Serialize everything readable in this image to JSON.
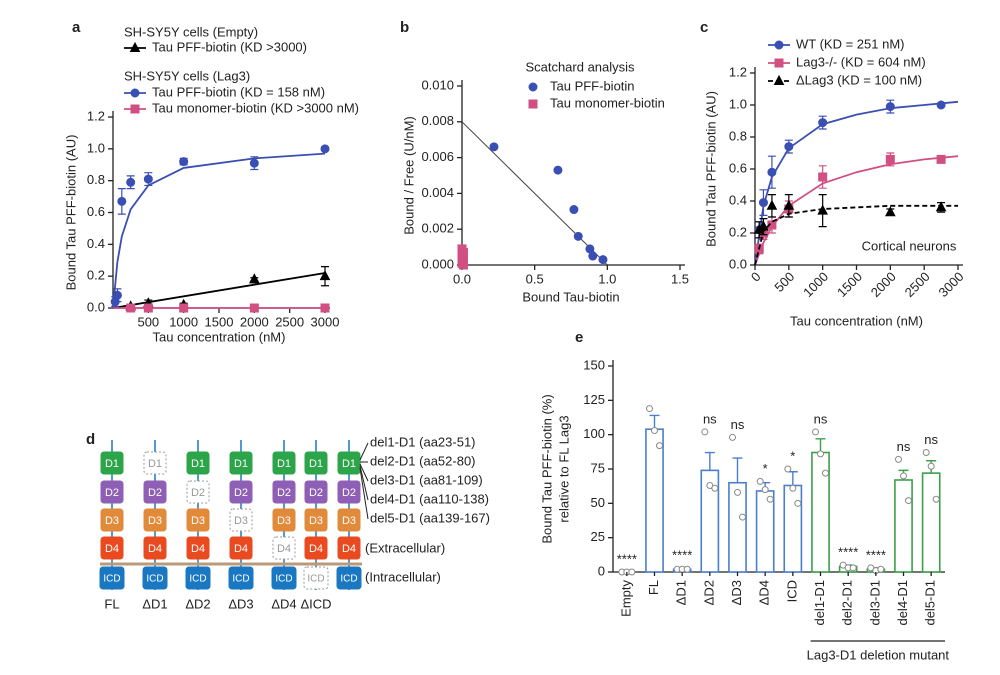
{
  "panel_labels": [
    "a",
    "b",
    "c",
    "d",
    "e"
  ],
  "chart_data": [
    {
      "type": "line",
      "legend_groups": [
        "SH-SY5Y cells (Empty)",
        "SH-SY5Y cells (Lag3)"
      ],
      "xlabel": "Tau concentration (nM)",
      "ylabel": "Bound Tau PFF-biotin (AU)",
      "xlim": [
        0,
        3000
      ],
      "xticks": [
        500,
        1000,
        1500,
        2000,
        2500,
        3000
      ],
      "ylim": [
        0,
        1.2
      ],
      "yticks": [
        {
          "value": 0,
          "label": "0.0"
        },
        0.2,
        0.4,
        0.6,
        0.8,
        {
          "value": 1,
          "label": "1.0"
        },
        1.2
      ],
      "series": [
        {
          "name": "Tau PFF-biotin (KD >3000)",
          "color": "#000000",
          "marker": "triangle",
          "x": [
            250,
            500,
            1000,
            2000,
            3000
          ],
          "values": [
            0.01,
            0.03,
            0.02,
            0.18,
            0.2
          ],
          "errors": [
            0.01,
            0.02,
            0.01,
            0.01,
            0.06
          ],
          "fit": {
            "x": [
              0,
              3000
            ],
            "values": [
              0,
              0.22
            ]
          }
        },
        {
          "name": "Tau PFF-biotin (KD = 158 nM)",
          "color": "#3a4fb3",
          "marker": "circle",
          "x": [
            31.25,
            62.5,
            125,
            250,
            500,
            1000,
            2000,
            3000
          ],
          "values": [
            0.04,
            0.08,
            0.67,
            0.79,
            0.81,
            0.92,
            0.91,
            1.0
          ],
          "errors": [
            0.03,
            0.04,
            0.08,
            0.04,
            0.04,
            0.02,
            0.04,
            0.01
          ],
          "fit": {
            "x": [
              0,
              62.5,
              125,
              250,
              500,
              1000,
              2000,
              3000
            ],
            "values": [
              0,
              0.29,
              0.45,
              0.62,
              0.77,
              0.88,
              0.94,
              0.97
            ]
          }
        },
        {
          "name": "Tau monomer-biotin (KD >3000 nM)",
          "color": "#d14f83",
          "marker": "square",
          "x": [
            250,
            500,
            1000,
            2000,
            3000
          ],
          "values": [
            0,
            0,
            0,
            0,
            0
          ],
          "fit": {
            "x": [
              0,
              3000
            ],
            "values": [
              0,
              0
            ]
          }
        }
      ]
    },
    {
      "type": "scatter",
      "title": "Scatchard analysis",
      "xlabel": "Bound Tau-biotin",
      "ylabel": "Bound / Free (U/nM)",
      "xlim": [
        0,
        1.5
      ],
      "xticks": [
        {
          "value": 0,
          "label": "0.0"
        },
        0.5,
        {
          "value": 1,
          "label": "1.0"
        },
        1.5
      ],
      "ylim": [
        0,
        0.01
      ],
      "yticks": [
        {
          "value": 0,
          "label": "0.000"
        },
        0.002,
        0.004,
        0.006,
        0.008,
        {
          "value": 0.01,
          "label": "0.010"
        }
      ],
      "series": [
        {
          "name": "Tau  PFF-biotin",
          "color": "#3a4fb3",
          "marker": "circle",
          "x": [
            0.22,
            0.66,
            0.77,
            0.8,
            0.88,
            0.9,
            0.97
          ],
          "values": [
            0.0066,
            0.0053,
            0.0031,
            0.0016,
            0.0009,
            0.0005,
            0.0003
          ]
        },
        {
          "name": "Tau monomer-biotin",
          "color": "#d14f83",
          "marker": "square",
          "x": [
            0,
            0.01,
            0,
            0.01,
            0,
            0.01
          ],
          "values": [
            0.0009,
            0.0007,
            0.0005,
            0.0003,
            0.0001,
            0
          ]
        }
      ],
      "fit_line": {
        "x": [
          0,
          1.0
        ],
        "values": [
          0.008,
          0
        ]
      }
    },
    {
      "type": "line",
      "xlabel": "Tau concentration (nM)",
      "ylabel": "Bound Tau PFF-biotin (AU)",
      "annotation": "Cortical neurons",
      "xlim": [
        0,
        3000
      ],
      "xticks": [
        0,
        500,
        1000,
        1500,
        2000,
        2500,
        3000
      ],
      "ylim": [
        0,
        1.2
      ],
      "yticks": [
        {
          "value": 0,
          "label": "0.0"
        },
        0.2,
        0.4,
        0.6,
        0.8,
        {
          "value": 1,
          "label": "1.0"
        },
        1.2
      ],
      "series": [
        {
          "name": "WT (KD = 251 nM)",
          "color": "#3a4fb3",
          "marker": "circle",
          "x": [
            62.5,
            125,
            250,
            500,
            1000,
            2000,
            2750
          ],
          "values": [
            0.22,
            0.39,
            0.58,
            0.74,
            0.89,
            0.99,
            1.0
          ],
          "errors": [
            0.05,
            0.08,
            0.1,
            0.04,
            0.04,
            0.04,
            0.01
          ],
          "fit": {
            "x": [
              0,
              125,
              250,
              500,
              1000,
              1500,
              2000,
              2500,
              3000
            ],
            "values": [
              0,
              0.37,
              0.55,
              0.73,
              0.88,
              0.94,
              0.98,
              1.0,
              1.02
            ]
          }
        },
        {
          "name": "Lag3-/- (KD = 604 nM)",
          "color": "#d14f83",
          "marker": "square",
          "x": [
            62.5,
            125,
            250,
            500,
            1000,
            2000,
            2750
          ],
          "values": [
            0.1,
            0.2,
            0.25,
            0.35,
            0.55,
            0.66,
            0.66
          ],
          "errors": [
            0.03,
            0.04,
            0.05,
            0.05,
            0.07,
            0.04,
            0.01
          ],
          "fit": {
            "x": [
              0,
              125,
              250,
              500,
              1000,
              1500,
              2000,
              2500,
              3000
            ],
            "values": [
              0,
              0.14,
              0.24,
              0.37,
              0.51,
              0.58,
              0.63,
              0.66,
              0.68
            ]
          }
        },
        {
          "name": "ΔLag3 (KD = 100 nM)",
          "color": "#000000",
          "marker": "triangle",
          "linestyle": "dashed",
          "x": [
            62.5,
            125,
            250,
            500,
            1000,
            2000,
            2750
          ],
          "values": [
            0.22,
            0.24,
            0.37,
            0.37,
            0.34,
            0.33,
            0.36
          ],
          "errors": [
            0.05,
            0.05,
            0.07,
            0.07,
            0.1,
            0.02,
            0.03
          ],
          "fit": {
            "x": [
              0,
              125,
              250,
              500,
              1000,
              1500,
              2000,
              2500,
              3000
            ],
            "values": [
              0,
              0.21,
              0.27,
              0.32,
              0.35,
              0.36,
              0.37,
              0.37,
              0.37
            ]
          }
        }
      ]
    },
    {
      "type": "bar",
      "ylabel": [
        "Bound Tau PFF-biotin (%)",
        "relative to FL Lag3"
      ],
      "group_label": "Lag3-D1 deletion mutant",
      "categories": [
        "Empty",
        "FL",
        "ΔD1",
        "ΔD2",
        "ΔD3",
        "ΔD4",
        "ICD",
        "del1-D1",
        "del2-D1",
        "del3-D1",
        "del4-D1",
        "del5-D1"
      ],
      "values": [
        0,
        104,
        2,
        74,
        65,
        59,
        63,
        87,
        4,
        2,
        67,
        72
      ],
      "errors": [
        0,
        10,
        1,
        13,
        18,
        6,
        10,
        10,
        1,
        1,
        7,
        9
      ],
      "colors": [
        "#4a7fd0",
        "#4a7fd0",
        "#4a7fd0",
        "#4a7fd0",
        "#4a7fd0",
        "#4a7fd0",
        "#4a7fd0",
        "#3aa04a",
        "#3aa04a",
        "#3aa04a",
        "#3aa04a",
        "#3aa04a"
      ],
      "points": [
        [
          0,
          0,
          0
        ],
        [
          119,
          103,
          92
        ],
        [
          2,
          2,
          2
        ],
        [
          102,
          63,
          61
        ],
        [
          98,
          58,
          40
        ],
        [
          66,
          60,
          53
        ],
        [
          75,
          61,
          50
        ],
        [
          102,
          86,
          72
        ],
        [
          5,
          3,
          3
        ],
        [
          3,
          1,
          2
        ],
        [
          82,
          70,
          52
        ],
        [
          87,
          77,
          53
        ]
      ],
      "significance": [
        "****",
        null,
        "****",
        "ns",
        "ns",
        "*",
        "*",
        "ns",
        "****",
        "****",
        "ns",
        "ns"
      ],
      "ylim": [
        0,
        150
      ],
      "yticks": [
        0,
        25,
        50,
        75,
        100,
        125,
        150
      ]
    }
  ],
  "diagram": {
    "columns": [
      "FL",
      "ΔD1",
      "ΔD2",
      "ΔD3",
      "ΔD4",
      "ΔICD",
      null
    ],
    "domains": [
      "D1",
      "D2",
      "D3",
      "D4",
      "ICD"
    ],
    "deletions": [
      "del1-D1 (aa23-51)",
      "del2-D1 (aa52-80)",
      "del3-D1 (aa81-109)",
      "del4-D1 (aa110-138)",
      "del5-D1 (aa139-167)"
    ],
    "extracellular": "(Extracellular)",
    "intracellular": "(Intracellular)"
  }
}
